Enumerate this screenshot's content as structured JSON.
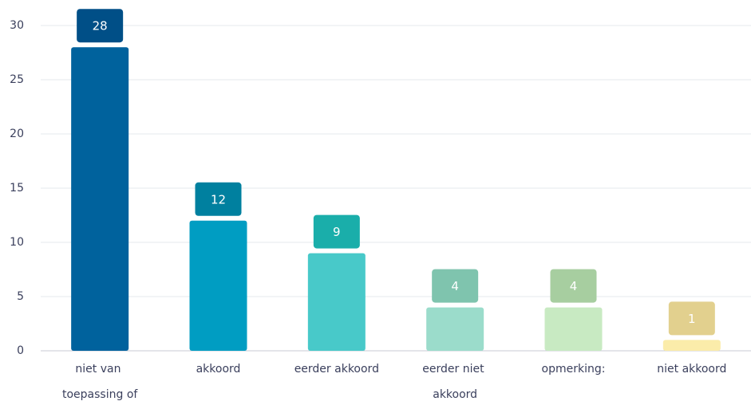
{
  "chart_data": {
    "type": "bar",
    "categories": [
      "niet van toepassing of",
      "akkoord",
      "eerder akkoord",
      "eerder niet akkoord",
      "opmerking:",
      "niet akkoord"
    ],
    "values": [
      28,
      12,
      9,
      4,
      4,
      1
    ],
    "colors": [
      "#00629d",
      "#009dc2",
      "#48c9c9",
      "#9bdccb",
      "#c8eac2",
      "#fbecaa"
    ],
    "label_colors": [
      "#004f87",
      "#00809f",
      "#1aaeaa",
      "#7fc4ae",
      "#a7cea0",
      "#e2d08e"
    ],
    "ylim": [
      0,
      30
    ],
    "yticks": [
      0,
      5,
      10,
      15,
      20,
      25,
      30
    ],
    "grid": true
  }
}
